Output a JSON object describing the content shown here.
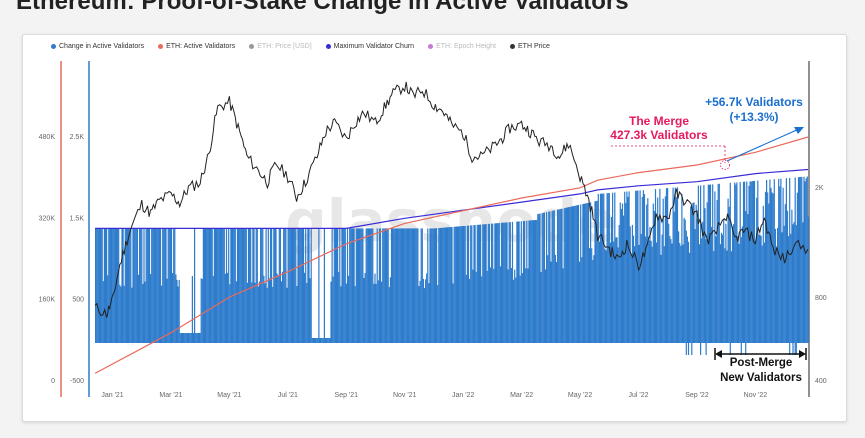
{
  "page": {
    "title": "Ethereum: Proof-of-Stake Change in Active Validators"
  },
  "colors": {
    "change_validators": "#2f7ccc",
    "active_validators": "#ea6a5c",
    "eth_price": "#222222",
    "churn": "#3b2bd6",
    "epoch": "#c27bd8",
    "annotation_pink": "#e5195f",
    "annotation_blue": "#1a6fd0"
  },
  "chart_data": {
    "type": "line",
    "watermark": "glassnode",
    "legend": [
      {
        "name": "Change in Active Validators",
        "color": "#2f7ccc",
        "muted": false
      },
      {
        "name": "ETH: Active Validators",
        "color": "#ea6a5c",
        "muted": false
      },
      {
        "name": "ETH: Price [USD]",
        "color": "#999999",
        "muted": true
      },
      {
        "name": "Maximum Validator Churn",
        "color": "#3b2bd6",
        "muted": false
      },
      {
        "name": "ETH: Epoch Height",
        "color": "#c27bd8",
        "muted": true
      },
      {
        "name": "ETH Price",
        "color": "#333333",
        "muted": false
      }
    ],
    "x_ticks": [
      "Jan '21",
      "Mar '21",
      "May '21",
      "Jul '21",
      "Sep '21",
      "Nov '21",
      "Jan '22",
      "Mar '22",
      "May '22",
      "Jul '22",
      "Sep '22",
      "Nov '22"
    ],
    "x_tick_months": [
      1,
      3,
      5,
      7,
      9,
      11,
      13,
      15,
      17,
      19,
      21,
      23
    ],
    "x_range_months": [
      0.4,
      24.8
    ],
    "y_axis_validators": {
      "ticks": [
        "0",
        "160K",
        "320K",
        "480K"
      ],
      "values": [
        0,
        160000,
        320000,
        480000
      ],
      "range": [
        0,
        480000
      ]
    },
    "y_axis_change": {
      "ticks": [
        "-500",
        "500",
        "1.5K",
        "2.5K"
      ],
      "values": [
        -500,
        500,
        1500,
        2500
      ],
      "range": [
        -500,
        3000
      ]
    },
    "y_axis_price": {
      "ticks": [
        "400",
        "800",
        "2K"
      ],
      "values": [
        400,
        800,
        2000
      ],
      "log": true
    },
    "active_validators": {
      "month": [
        0.4,
        3,
        5,
        7,
        9,
        11,
        13,
        15,
        17,
        17.6,
        19,
        21,
        23,
        24.8
      ],
      "value": [
        15000,
        95000,
        165000,
        215000,
        270000,
        310000,
        335000,
        360000,
        380000,
        395000,
        410000,
        425000,
        450000,
        480000
      ]
    },
    "max_churn": {
      "month": [
        0.4,
        9,
        11,
        13,
        15,
        17,
        17.6,
        19,
        21,
        23,
        24.8
      ],
      "value": [
        1376,
        1376,
        1500,
        1600,
        1700,
        1800,
        1850,
        1900,
        1950,
        2050,
        2100
      ]
    },
    "change_in_active_validators_typical": 1376,
    "eth_price": {
      "month": [
        0.4,
        0.8,
        1.0,
        1.3,
        1.6,
        2.0,
        2.3,
        2.6,
        3.0,
        3.3,
        3.6,
        4.0,
        4.3,
        4.6,
        5.0,
        5.3,
        5.6,
        6.0,
        6.3,
        6.6,
        7.0,
        7.3,
        7.6,
        8.0,
        8.3,
        8.6,
        9.0,
        9.3,
        9.6,
        10.0,
        10.3,
        10.6,
        11.0,
        11.3,
        11.6,
        12.0,
        12.3,
        12.6,
        13.0,
        13.3,
        13.6,
        14.0,
        14.3,
        14.6,
        15.0,
        15.3,
        15.6,
        16.0,
        16.3,
        16.6,
        17.0,
        17.3,
        17.6,
        18.0,
        18.3,
        18.6,
        19.0,
        19.3,
        19.6,
        20.0,
        20.3,
        20.6,
        21.0,
        21.3,
        21.6,
        22.0,
        22.3,
        22.6,
        23.0,
        23.3,
        23.6,
        24.0,
        24.3,
        24.8
      ],
      "value": [
        740,
        700,
        780,
        1100,
        1400,
        1750,
        1620,
        1800,
        1900,
        1760,
        2000,
        2100,
        2650,
        3900,
        4100,
        3300,
        2600,
        2300,
        2100,
        2450,
        2200,
        1850,
        2100,
        2600,
        3200,
        3450,
        3000,
        3450,
        3750,
        3450,
        3900,
        4400,
        4700,
        4300,
        4550,
        4000,
        3800,
        3400,
        3150,
        2600,
        2600,
        2800,
        3000,
        3300,
        3400,
        3200,
        2950,
        2850,
        2600,
        2900,
        2200,
        1800,
        1350,
        1200,
        1100,
        1250,
        1050,
        1200,
        1600,
        1550,
        1900,
        1800,
        1600,
        1300,
        1350,
        1600,
        1300,
        1400,
        1300,
        1550,
        1200,
        1100,
        1250,
        1200
      ]
    },
    "annotations": {
      "merge_title": "The Merge",
      "merge_value": "427.3k Validators",
      "growth_value": "+56.7k Validators",
      "growth_pct": "(+13.3%)",
      "post_merge_1": "Post-Merge",
      "post_merge_2": "New Validators"
    }
  }
}
